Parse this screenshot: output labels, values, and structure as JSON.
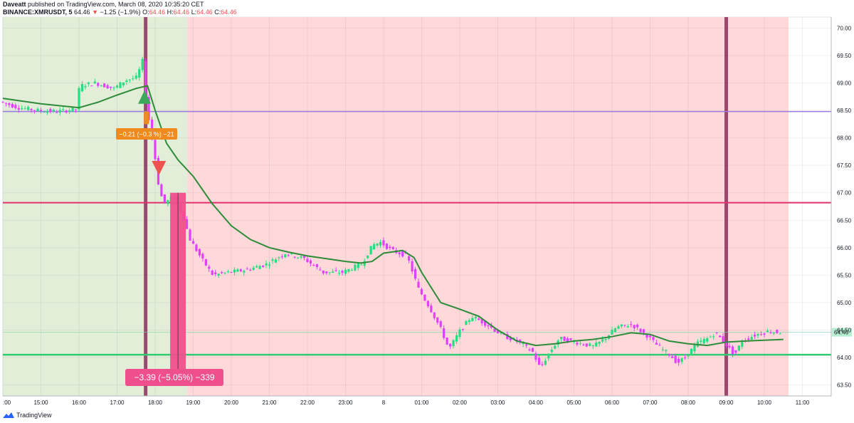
{
  "header": {
    "author": "Daveatt",
    "published": "published on TradingView.com, March 08, 2020 10:35:20 CET",
    "symbol": "BINANCE:XMRUSDT, 5",
    "last": "64.46",
    "change": "−1.25 (−1.9%)",
    "o_label": "O:",
    "o": "64.46",
    "h_label": "H:",
    "h": "64.46",
    "l_label": "L:",
    "l": "64.46",
    "c_label": "C:",
    "c": "64.46"
  },
  "footer": {
    "brand": "TradingView"
  },
  "colors": {
    "bull": "#26de81",
    "bear": "#e040fb",
    "ma": "#2e8b3a",
    "green_bg": "#e3eed9",
    "red_bg": "#ffd9d9",
    "purple_line": "#9c7be0",
    "pink_line": "#e0306e",
    "green_line": "#2ecc71",
    "vline": "#8b2f5e",
    "label_orange": "#f08a1e",
    "label_pink": "#ef4f8c",
    "price_tag": "#b7efd0"
  },
  "chart_data": {
    "type": "candlestick",
    "x_ticks": [
      ":00",
      "15:00",
      "16:00",
      "17:00",
      "18:00",
      "19:00",
      "20:00",
      "21:00",
      "22:00",
      "23:00",
      "8",
      "01:00",
      "02:00",
      "03:00",
      "04:00",
      "05:00",
      "06:00",
      "07:00",
      "08:00",
      "09:00",
      "10:00",
      "11:00"
    ],
    "y_ticks": [
      "70.00",
      "69.50",
      "69.00",
      "68.50",
      "68.00",
      "67.50",
      "67.00",
      "66.50",
      "66.00",
      "65.50",
      "65.00",
      "64.50",
      "64.00",
      "63.50"
    ],
    "ylim": [
      63.3,
      70.2
    ],
    "last_price_label": "64.46",
    "last_price": 64.46,
    "horizontal_lines": [
      68.48,
      66.82,
      64.05
    ],
    "entry_label": "−0.21 (−0.3 %) −21",
    "measure_label": "−3.39 (−5.05%) −339",
    "measure_range": [
      67.0,
      63.61
    ],
    "ma_series": [
      [
        14.0,
        68.72
      ],
      [
        15.0,
        68.62
      ],
      [
        16.0,
        68.55
      ],
      [
        16.5,
        68.65
      ],
      [
        17.0,
        68.78
      ],
      [
        17.5,
        68.9
      ],
      [
        17.8,
        68.95
      ],
      [
        18.0,
        68.5
      ],
      [
        18.3,
        67.9
      ],
      [
        18.6,
        67.6
      ],
      [
        19.0,
        67.3
      ],
      [
        19.5,
        66.8
      ],
      [
        20.0,
        66.4
      ],
      [
        20.5,
        66.15
      ],
      [
        21.0,
        66.0
      ],
      [
        21.5,
        65.92
      ],
      [
        22.0,
        65.85
      ],
      [
        22.5,
        65.8
      ],
      [
        23.0,
        65.75
      ],
      [
        23.4,
        65.72
      ],
      [
        23.7,
        65.75
      ],
      [
        24.0,
        65.9
      ],
      [
        24.5,
        65.95
      ],
      [
        24.8,
        65.82
      ],
      [
        25.0,
        65.55
      ],
      [
        25.5,
        65.0
      ],
      [
        26.0,
        64.88
      ],
      [
        26.5,
        64.75
      ],
      [
        27.0,
        64.5
      ],
      [
        27.5,
        64.3
      ],
      [
        28.0,
        64.22
      ],
      [
        28.5,
        64.25
      ],
      [
        29.0,
        64.3
      ],
      [
        29.5,
        64.33
      ],
      [
        30.0,
        64.38
      ],
      [
        30.5,
        64.45
      ],
      [
        31.0,
        64.42
      ],
      [
        31.5,
        64.3
      ],
      [
        32.0,
        64.25
      ],
      [
        32.5,
        64.22
      ],
      [
        33.0,
        64.28
      ],
      [
        33.5,
        64.3
      ],
      [
        34.5,
        64.33
      ]
    ],
    "price_path": [
      [
        14.0,
        68.66
      ],
      [
        14.5,
        68.55
      ],
      [
        15.0,
        68.5
      ],
      [
        15.5,
        68.48
      ],
      [
        16.0,
        68.52
      ],
      [
        16.1,
        68.95
      ],
      [
        16.5,
        69.0
      ],
      [
        17.0,
        68.9
      ],
      [
        17.3,
        69.05
      ],
      [
        17.6,
        69.1
      ],
      [
        17.75,
        69.4
      ],
      [
        17.85,
        68.6
      ],
      [
        17.95,
        68.2
      ],
      [
        18.05,
        67.8
      ],
      [
        18.2,
        67.0
      ],
      [
        18.35,
        66.8
      ],
      [
        18.55,
        66.95
      ],
      [
        18.8,
        66.6
      ],
      [
        19.0,
        66.15
      ],
      [
        19.3,
        65.8
      ],
      [
        19.6,
        65.5
      ],
      [
        20.0,
        65.55
      ],
      [
        20.5,
        65.6
      ],
      [
        21.0,
        65.7
      ],
      [
        21.5,
        65.9
      ],
      [
        22.0,
        65.8
      ],
      [
        22.5,
        65.55
      ],
      [
        23.0,
        65.55
      ],
      [
        23.5,
        65.7
      ],
      [
        23.8,
        66.05
      ],
      [
        24.0,
        66.1
      ],
      [
        24.3,
        65.95
      ],
      [
        24.7,
        65.85
      ],
      [
        25.0,
        65.25
      ],
      [
        25.3,
        64.9
      ],
      [
        25.6,
        64.5
      ],
      [
        25.8,
        64.15
      ],
      [
        26.1,
        64.5
      ],
      [
        26.4,
        64.75
      ],
      [
        26.8,
        64.6
      ],
      [
        27.2,
        64.4
      ],
      [
        27.6,
        64.3
      ],
      [
        28.0,
        64.1
      ],
      [
        28.2,
        63.8
      ],
      [
        28.4,
        64.05
      ],
      [
        28.7,
        64.35
      ],
      [
        29.0,
        64.3
      ],
      [
        29.3,
        64.25
      ],
      [
        29.6,
        64.2
      ],
      [
        29.9,
        64.35
      ],
      [
        30.2,
        64.55
      ],
      [
        30.6,
        64.6
      ],
      [
        31.0,
        64.4
      ],
      [
        31.3,
        64.2
      ],
      [
        31.6,
        64.05
      ],
      [
        31.8,
        63.9
      ],
      [
        32.0,
        64.0
      ],
      [
        32.3,
        64.25
      ],
      [
        32.6,
        64.35
      ],
      [
        32.8,
        64.45
      ],
      [
        33.0,
        64.3
      ],
      [
        33.3,
        64.05
      ],
      [
        33.5,
        64.3
      ],
      [
        33.8,
        64.4
      ],
      [
        34.2,
        64.48
      ],
      [
        34.4,
        64.46
      ]
    ]
  }
}
